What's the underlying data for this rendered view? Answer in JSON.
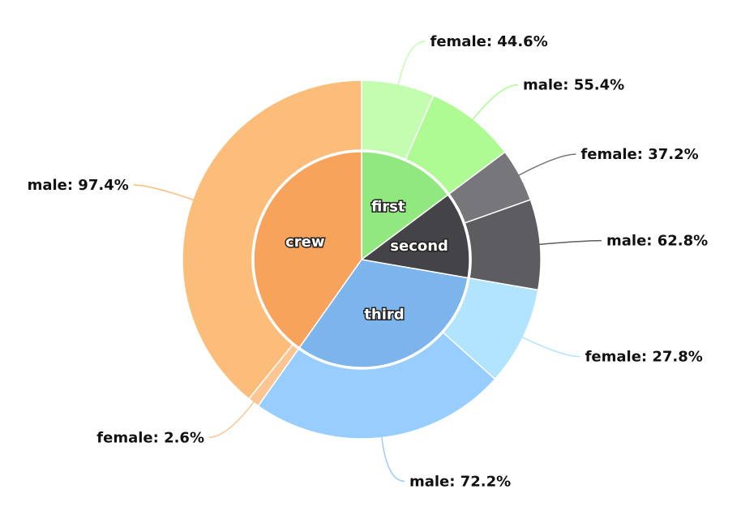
{
  "chart_data": {
    "type": "pie",
    "subtype": "nested-donut",
    "inner": [
      {
        "label": "first",
        "value": 325,
        "color": "#90e87e"
      },
      {
        "label": "second",
        "value": 285,
        "color": "#434348"
      },
      {
        "label": "third",
        "value": 706,
        "color": "#7cb5ec"
      },
      {
        "label": "crew",
        "value": 885,
        "color": "#f7a35c"
      }
    ],
    "outer": [
      {
        "parent": "first",
        "label": "female: 44.6%",
        "value": 145,
        "color": "#c3fdb0"
      },
      {
        "parent": "first",
        "label": "male: 55.4%",
        "value": 180,
        "color": "#aefb94"
      },
      {
        "parent": "second",
        "label": "female: 37.2%",
        "value": 106,
        "color": "#77767b"
      },
      {
        "parent": "second",
        "label": "male: 62.8%",
        "value": 179,
        "color": "#5d5d61"
      },
      {
        "parent": "third",
        "label": "female: 27.8%",
        "value": 196,
        "color": "#b0e4ff"
      },
      {
        "parent": "third",
        "label": "male: 72.2%",
        "value": 510,
        "color": "#98ceff"
      },
      {
        "parent": "crew",
        "label": "female: 2.6%",
        "value": 23,
        "color": "#fdc591"
      },
      {
        "parent": "crew",
        "label": "male: 97.4%",
        "value": 862,
        "color": "#fdbd7a"
      }
    ],
    "start_angle_deg": 0,
    "direction": "clockwise"
  }
}
